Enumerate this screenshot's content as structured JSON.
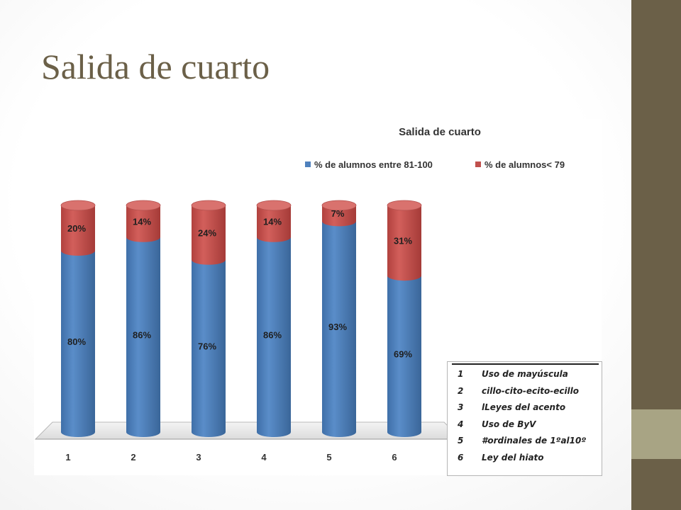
{
  "slide": {
    "title": "Salida de cuarto",
    "colors": {
      "title": "#6b6048",
      "side_bar": "#6b6048",
      "side_accent": "#a8a484"
    }
  },
  "chart_data": {
    "type": "bar",
    "stacked": true,
    "title": "Salida de cuarto",
    "categories": [
      "1",
      "2",
      "3",
      "4",
      "5",
      "6"
    ],
    "series": [
      {
        "name": "% de alumnos entre 81-100",
        "values": [
          80,
          86,
          76,
          86,
          93,
          69
        ],
        "labels": [
          "80%",
          "86%",
          "76%",
          "86%",
          "93%",
          "69%"
        ],
        "color": "#4f81bd"
      },
      {
        "name": "% de alumnos< 79",
        "values": [
          20,
          14,
          24,
          14,
          7,
          31
        ],
        "labels": [
          "20%",
          "14%",
          "24%",
          "14%",
          "7%",
          "31%"
        ],
        "color": "#c0504d"
      }
    ],
    "ylim": [
      0,
      100
    ],
    "grid": false,
    "legend_position": "top-right",
    "style": "3d-cylinder"
  },
  "legend_table": {
    "rows": [
      {
        "num": "1",
        "text": "Uso de mayúscula"
      },
      {
        "num": "2",
        "text": "cillo-cito-ecito-ecillo"
      },
      {
        "num": "3",
        "text": "lLeyes del acento"
      },
      {
        "num": "4",
        "text": "Uso de ByV"
      },
      {
        "num": "5",
        "text": "#ordinales de 1ºal10º"
      },
      {
        "num": "6",
        "text": "Ley del hiato"
      }
    ]
  }
}
